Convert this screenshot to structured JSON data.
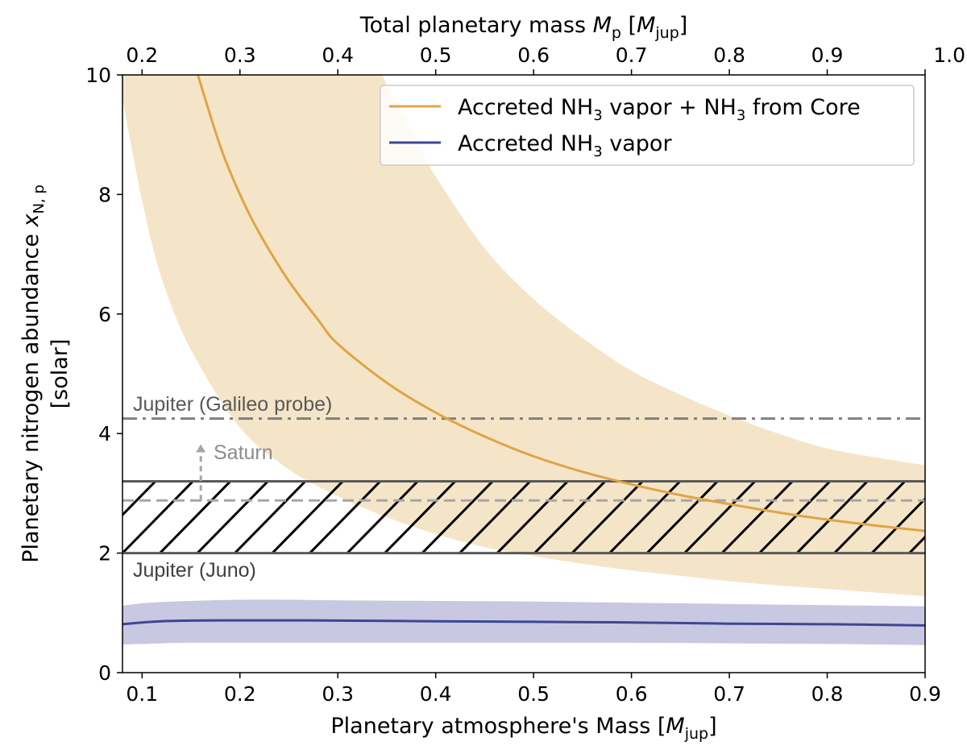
{
  "colors": {
    "orange": "#E0A445",
    "orange_band": "#F5E5C8",
    "blue": "#3A4894",
    "blue_band": "#C8C8E2",
    "gray_dark": "#595959",
    "gray_dashdot": "#808080",
    "gray_light": "#A6A6A6"
  },
  "chart_data": {
    "type": "line",
    "xlabel_prefix": "Planetary atmosphere's Mass [",
    "xlabel_sym": "M",
    "xlabel_sub": "jup",
    "xlabel_suffix": "]",
    "ylabel_line1_prefix": "Planetary nitrogen abundance ",
    "ylabel_line1_sym": "x",
    "ylabel_line1_sub": "N, p",
    "ylabel_line2": "[solar]",
    "top_xlabel_prefix": "Total planetary mass ",
    "top_xlabel_sym": "M",
    "top_xlabel_sub": "p",
    "top_xlabel_mid": " [",
    "top_xlabel_sym2": "M",
    "top_xlabel_sub2": "jup",
    "top_xlabel_suffix": "]",
    "xlim": [
      0.08,
      0.9
    ],
    "ylim": [
      0,
      10
    ],
    "top_xlim": [
      0.18,
      1.0
    ],
    "x_ticks": [
      "0.1",
      "0.2",
      "0.3",
      "0.4",
      "0.5",
      "0.6",
      "0.7",
      "0.8",
      "0.9"
    ],
    "y_ticks": [
      "0",
      "2",
      "4",
      "6",
      "8",
      "10"
    ],
    "top_x_ticks": [
      "0.2",
      "0.3",
      "0.4",
      "0.5",
      "0.6",
      "0.7",
      "0.8",
      "0.9",
      "1.0"
    ],
    "series": [
      {
        "name": "Accreted NH3 vapor + NH3 from Core",
        "legend_parts": [
          "Accreted NH",
          "3",
          " vapor + NH",
          "3",
          " from Core"
        ],
        "color": "#E0A445",
        "x": [
          0.157,
          0.18,
          0.2,
          0.22,
          0.25,
          0.28,
          0.3,
          0.35,
          0.4,
          0.45,
          0.5,
          0.55,
          0.6,
          0.65,
          0.7,
          0.75,
          0.8,
          0.85,
          0.9
        ],
        "y": [
          10.0,
          8.8,
          8.0,
          7.35,
          6.55,
          5.9,
          5.5,
          4.85,
          4.35,
          3.95,
          3.62,
          3.36,
          3.15,
          2.97,
          2.82,
          2.68,
          2.56,
          2.46,
          2.37
        ],
        "band_x": [
          0.08,
          0.1,
          0.12,
          0.15,
          0.2,
          0.25,
          0.3,
          0.35,
          0.4,
          0.45,
          0.5,
          0.55,
          0.6,
          0.65,
          0.7,
          0.75,
          0.8,
          0.85,
          0.9
        ],
        "band_lower": [
          9.6,
          7.9,
          6.6,
          5.4,
          4.1,
          3.4,
          2.95,
          2.6,
          2.32,
          2.1,
          1.95,
          1.82,
          1.71,
          1.62,
          1.53,
          1.46,
          1.4,
          1.34,
          1.28
        ],
        "band_upper_x": [
          0.345,
          0.38,
          0.4,
          0.45,
          0.5,
          0.55,
          0.6,
          0.65,
          0.7,
          0.75,
          0.8,
          0.85,
          0.9
        ],
        "band_upper": [
          10.0,
          8.9,
          8.3,
          7.1,
          6.25,
          5.6,
          5.05,
          4.65,
          4.3,
          4.0,
          3.75,
          3.6,
          3.47
        ]
      },
      {
        "name": "Accreted NH3 vapor",
        "legend_parts": [
          "Accreted NH",
          "3",
          " vapor"
        ],
        "color": "#3A4894",
        "x": [
          0.08,
          0.1,
          0.12,
          0.15,
          0.2,
          0.25,
          0.3,
          0.4,
          0.5,
          0.6,
          0.7,
          0.8,
          0.9
        ],
        "y": [
          0.81,
          0.84,
          0.86,
          0.87,
          0.875,
          0.875,
          0.87,
          0.86,
          0.85,
          0.84,
          0.82,
          0.81,
          0.79
        ],
        "band_lower": [
          0.47,
          0.48,
          0.49,
          0.5,
          0.5,
          0.5,
          0.5,
          0.5,
          0.5,
          0.5,
          0.49,
          0.48,
          0.46
        ],
        "band_upper": [
          1.12,
          1.16,
          1.18,
          1.2,
          1.22,
          1.22,
          1.21,
          1.2,
          1.19,
          1.17,
          1.15,
          1.13,
          1.11
        ]
      }
    ],
    "reference_lines": [
      {
        "name": "Jupiter (Galileo probe)",
        "label": "Jupiter (Galileo probe)",
        "y": 4.25,
        "style": "dashdot",
        "color": "#808080"
      },
      {
        "name": "Saturn",
        "label": "Saturn",
        "y": 2.88,
        "style": "dashed",
        "color": "#A6A6A6",
        "arrow_x": 0.16,
        "arrow_to": 3.82
      },
      {
        "name": "Jupiter (Juno) upper",
        "y": 3.2,
        "style": "solid",
        "color": "#595959"
      },
      {
        "name": "Jupiter (Juno) lower",
        "label": "Jupiter (Juno)",
        "y": 2.0,
        "style": "solid",
        "color": "#595959"
      }
    ],
    "hatch_region": {
      "y0": 2.0,
      "y1": 3.2
    },
    "legend_position": "top-right"
  }
}
